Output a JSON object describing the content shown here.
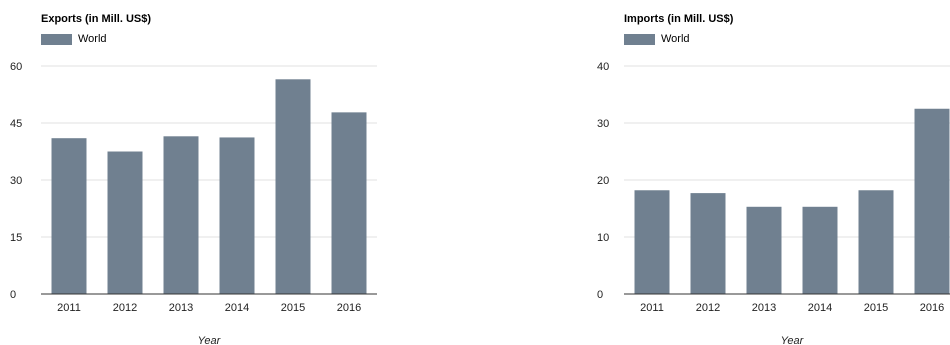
{
  "chart_data": [
    {
      "type": "bar",
      "title": "Exports (in Mill. US$)",
      "categories": [
        "2011",
        "2012",
        "2013",
        "2014",
        "2015",
        "2016"
      ],
      "series": [
        {
          "name": "World",
          "values": [
            41,
            37.5,
            41.5,
            41.2,
            56.5,
            47.8
          ]
        }
      ],
      "xlabel": "Year",
      "ylabel": "",
      "ylim": [
        0,
        60
      ],
      "yticks": [
        0,
        15,
        30,
        45,
        60
      ],
      "grid": true,
      "legend": "top-left",
      "colors": {
        "bar": "#708090",
        "grid": "#e0e0e0",
        "axis": "#333333"
      }
    },
    {
      "type": "bar",
      "title": "Imports (in Mill. US$)",
      "categories": [
        "2011",
        "2012",
        "2013",
        "2014",
        "2015",
        "2016"
      ],
      "series": [
        {
          "name": "World",
          "values": [
            18.2,
            17.7,
            15.3,
            15.3,
            18.2,
            32.5
          ]
        }
      ],
      "xlabel": "Year",
      "ylabel": "",
      "ylim": [
        0,
        40
      ],
      "yticks": [
        0,
        10,
        20,
        30,
        40
      ],
      "grid": true,
      "legend": "top-left",
      "colors": {
        "bar": "#708090",
        "grid": "#e0e0e0",
        "axis": "#333333"
      }
    }
  ]
}
